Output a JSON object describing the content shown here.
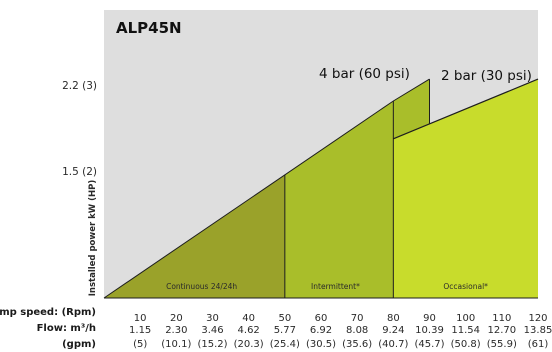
{
  "chart_data": {
    "type": "area",
    "title": "ALP45N",
    "ylabel": "Installed power kW (HP)",
    "y_ticks": [
      {
        "value": 2.2,
        "label": "2.2 (3)"
      },
      {
        "value": 1.5,
        "label": "1.5 (2)"
      }
    ],
    "ylim": [
      0,
      2.9
    ],
    "x_row_labels": {
      "speed": "Pump speed: (Rpm)",
      "flow": "Flow: m³/h",
      "gpm": "(gpm)"
    },
    "x": [
      10,
      20,
      30,
      40,
      50,
      60,
      70,
      80,
      90,
      100,
      110,
      120
    ],
    "xlim": [
      0,
      120
    ],
    "flow_m3h": [
      "1.15",
      "2.30",
      "3.46",
      "4.62",
      "5.77",
      "6.92",
      "8.08",
      "9.24",
      "10.39",
      "11.54",
      "12.70",
      "13.85"
    ],
    "flow_gpm": [
      "(5)",
      "(10.1)",
      "(15.2)",
      "(20.3)",
      "(25.4)",
      "(30.5)",
      "(35.6)",
      "(40.7)",
      "(45.7)",
      "(50.8)",
      "(55.9)",
      "(61)"
    ],
    "series": [
      {
        "name": "4 bar (60 psi)",
        "points": [
          [
            0,
            0
          ],
          [
            80,
            1.98
          ],
          [
            90,
            2.2
          ]
        ],
        "color": "#a9be2a"
      },
      {
        "name": "2 bar (30 psi)",
        "points": [
          [
            80,
            1.6
          ],
          [
            120,
            2.2
          ]
        ],
        "color": "#c8dc2c"
      }
    ],
    "zones": [
      {
        "label": "Continuous 24/24h",
        "from": 0,
        "to": 50,
        "color": "#9aa22a"
      },
      {
        "label": "Intermittent*",
        "from": 50,
        "to": 80,
        "color": "#a9be2a"
      },
      {
        "label": "Occasional*",
        "from": 80,
        "to": 120,
        "color": "#c8dc2c"
      }
    ]
  }
}
